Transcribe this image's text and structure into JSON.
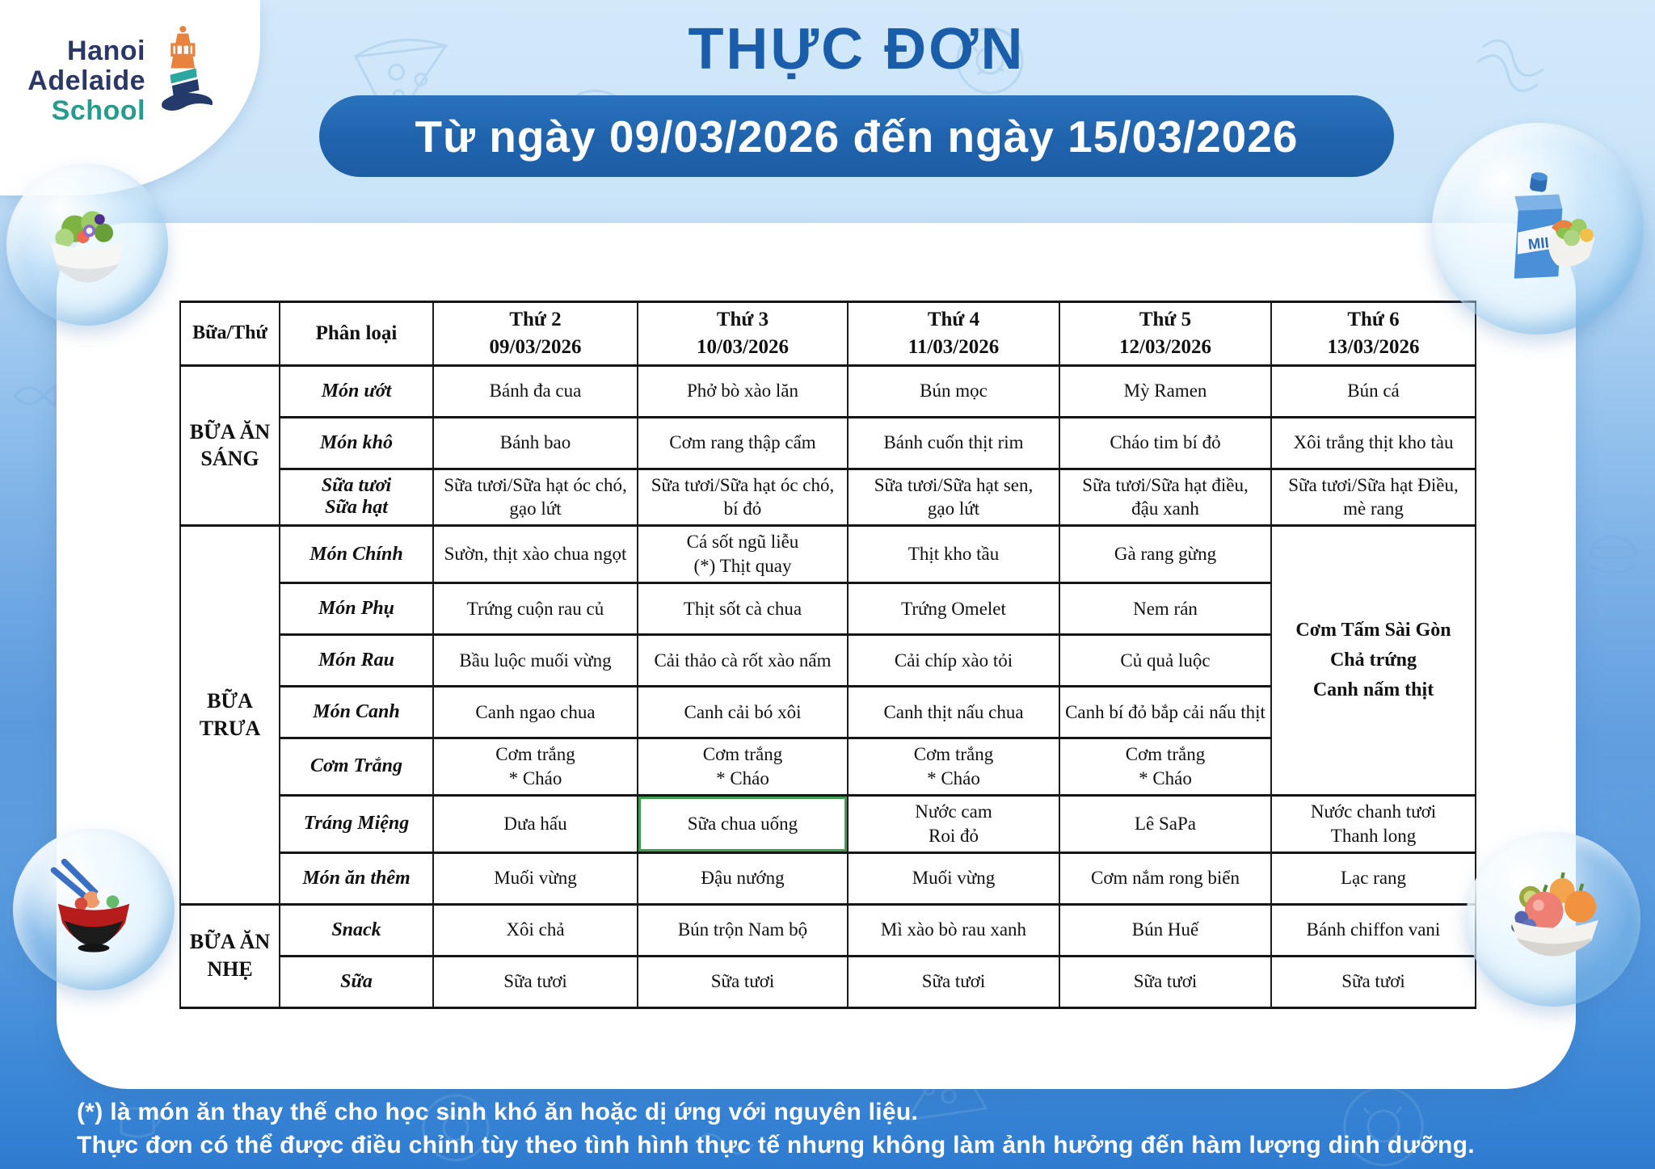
{
  "logo": {
    "line1": "Hanoi",
    "line2": "Adelaide",
    "line3": "School"
  },
  "header": {
    "title": "THỰC ĐƠN",
    "date_range": "Từ ngày 09/03/2026 đến ngày 15/03/2026"
  },
  "table": {
    "corner_header": "Bữa/Thứ",
    "category_header": "Phân loại",
    "day_headers": [
      {
        "day": "Thứ 2",
        "date": "09/03/2026"
      },
      {
        "day": "Thứ 3",
        "date": "10/03/2026"
      },
      {
        "day": "Thứ 4",
        "date": "11/03/2026"
      },
      {
        "day": "Thứ 5",
        "date": "12/03/2026"
      },
      {
        "day": "Thứ 6",
        "date": "13/03/2026"
      }
    ],
    "sections": [
      {
        "meal": "BỮA ĂN\nSÁNG",
        "rows": [
          {
            "category": "Món ướt",
            "cells": [
              "Bánh đa cua",
              "Phở bò xào lăn",
              "Bún mọc",
              "Mỳ Ramen",
              "Bún cá"
            ]
          },
          {
            "category": "Món khô",
            "cells": [
              "Bánh bao",
              "Cơm rang thập cẩm",
              "Bánh cuốn thịt rim",
              "Cháo tim bí đỏ",
              "Xôi trắng thịt kho tàu"
            ]
          },
          {
            "category": "Sữa tươi\nSữa hạt",
            "cells": [
              "Sữa tươi/Sữa hạt óc chó,\ngạo lứt",
              "Sữa tươi/Sữa hạt óc chó,\nbí đỏ",
              "Sữa tươi/Sữa hạt sen,\ngạo lứt",
              "Sữa tươi/Sữa hạt điều,\nđậu xanh",
              "Sữa tươi/Sữa hạt Điều,\nmè rang"
            ]
          }
        ]
      },
      {
        "meal": "BỮA\nTRƯA",
        "friday_merged": {
          "text": "Cơm Tấm Sài Gòn\nChả trứng\nCanh nấm thịt",
          "rowspan": 5
        },
        "rows": [
          {
            "category": "Món Chính",
            "cells": [
              "Sườn, thịt xào chua ngọt",
              "Cá sốt ngũ liễu\n(*) Thịt quay",
              "Thịt kho tầu",
              "Gà rang gừng"
            ]
          },
          {
            "category": "Món Phụ",
            "cells": [
              "Trứng cuộn rau củ",
              "Thịt sốt cà chua",
              "Trứng Omelet",
              "Nem rán"
            ]
          },
          {
            "category": "Món Rau",
            "cells": [
              "Bầu luộc muối vừng",
              "Cải thảo cà rốt xào nấm",
              "Cải chíp xào tỏi",
              "Củ quả luộc"
            ]
          },
          {
            "category": "Món Canh",
            "cells": [
              "Canh ngao chua",
              "Canh cải bó xôi",
              "Canh thịt nấu chua",
              "Canh bí đỏ bắp cải nấu thịt"
            ]
          },
          {
            "category": "Cơm Trắng",
            "cells": [
              "Cơm trắng\n* Cháo",
              "Cơm trắng\n* Cháo",
              "Cơm trắng\n* Cháo",
              "Cơm trắng\n* Cháo"
            ]
          },
          {
            "category": "Tráng Miệng",
            "cells": [
              "Dưa hấu",
              "Sữa chua uống",
              "Nước cam\nRoi đỏ",
              "Lê SaPa",
              "Nước chanh tươi\nThanh long"
            ]
          },
          {
            "category": "Món ăn thêm",
            "cells": [
              "Muối vừng",
              "Đậu nướng",
              "Muối vừng",
              "Cơm nắm rong biển",
              "Lạc rang"
            ]
          }
        ]
      },
      {
        "meal": "BỮA ĂN\nNHẸ",
        "rows": [
          {
            "category": "Snack",
            "cells": [
              "Xôi chả",
              "Bún trộn Nam bộ",
              "Mì xào bò rau xanh",
              "Bún Huế",
              "Bánh chiffon vani"
            ]
          },
          {
            "category": "Sữa",
            "cells": [
              "Sữa tươi",
              "Sữa tươi",
              "Sữa tươi",
              "Sữa tươi",
              "Sữa tươi"
            ]
          }
        ]
      }
    ],
    "highlight": {
      "section": 1,
      "row": 5,
      "col": 1
    }
  },
  "footer": {
    "line1": "(*) là món ăn thay thế cho học sinh khó ăn hoặc dị ứng với nguyên liệu.",
    "line2": "Thực đơn có thể được điều chỉnh tùy theo tình hình thực tế nhưng không làm ảnh hưởng đến hàm lượng dinh dưỡng."
  },
  "decor": {
    "bubbles": [
      "salad-bowl-icon",
      "milk-carton-icon",
      "noodle-bowl-icon",
      "fruit-bowl-icon"
    ],
    "logo_icon": "lighthouse-icon"
  },
  "colors": {
    "title_blue": "#1a5dab",
    "banner_blue": "#2063ad",
    "background_top": "#d3e9fa",
    "background_bottom": "#2e7bd0",
    "highlight_green": "#3f9d50",
    "logo_navy": "#2b3866",
    "logo_teal": "#279b8e",
    "logo_orange": "#e8833f"
  }
}
